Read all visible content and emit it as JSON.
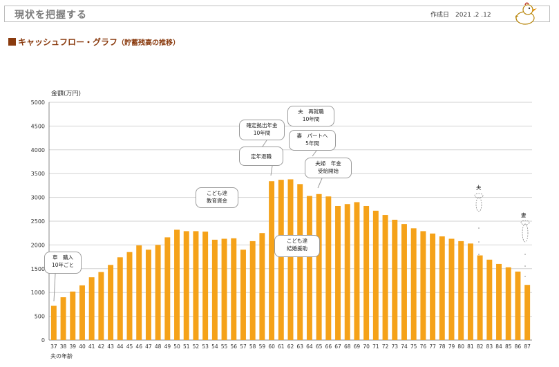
{
  "header": {
    "title": "現状を把握する",
    "date_label": "作成日",
    "date": "2021 .2 .12"
  },
  "section": {
    "title": "キャッシュフロー・グラフ",
    "subtitle": "（貯蓄残高の推移）"
  },
  "colors": {
    "bar": "#F5A219",
    "grid": "#d2d2d2",
    "accent": "#8a3b0f"
  },
  "chart_data": {
    "type": "bar",
    "ylabel": "金額(万円)",
    "xlabel": "夫の年齢",
    "ylim": [
      0,
      5000
    ],
    "yticks": [
      0,
      500,
      1000,
      1500,
      2000,
      2500,
      3000,
      3500,
      4000,
      4500,
      5000
    ],
    "grid": true,
    "categories": [
      "37",
      "38",
      "39",
      "40",
      "41",
      "42",
      "43",
      "44",
      "45",
      "46",
      "47",
      "48",
      "49",
      "50",
      "51",
      "52",
      "53",
      "54",
      "55",
      "56",
      "57",
      "58",
      "59",
      "60",
      "61",
      "62",
      "63",
      "64",
      "65",
      "66",
      "67",
      "68",
      "69",
      "70",
      "71",
      "72",
      "73",
      "74",
      "75",
      "76",
      "77",
      "78",
      "79",
      "80",
      "81",
      "82",
      "83",
      "84",
      "85",
      "86",
      "87"
    ],
    "values": [
      720,
      900,
      1020,
      1150,
      1320,
      1430,
      1580,
      1740,
      1850,
      1990,
      1900,
      2000,
      2160,
      2320,
      2290,
      2290,
      2280,
      2110,
      2130,
      2140,
      1900,
      2080,
      2250,
      3340,
      3370,
      3380,
      3280,
      3030,
      3070,
      3020,
      2820,
      2860,
      2900,
      2820,
      2720,
      2630,
      2530,
      2440,
      2350,
      2290,
      2240,
      2180,
      2130,
      2080,
      2030,
      1780,
      1690,
      1600,
      1530,
      1440,
      1160
    ]
  },
  "annotations": [
    {
      "id": "car",
      "lines": [
        "車　購入",
        "10年ごと"
      ]
    },
    {
      "id": "edu",
      "lines": [
        "こども達",
        "教育資金"
      ]
    },
    {
      "id": "pension",
      "lines": [
        "確定拠出年金",
        "10年間"
      ]
    },
    {
      "id": "retire",
      "lines": [
        "定年退職"
      ]
    },
    {
      "id": "rehire",
      "lines": [
        "夫　再就職",
        "10年間"
      ]
    },
    {
      "id": "parttime",
      "lines": [
        "妻　パートへ",
        "5年間"
      ]
    },
    {
      "id": "public",
      "lines": [
        "夫婦　年金",
        "受給開始"
      ]
    },
    {
      "id": "wedding",
      "lines": [
        "こども達",
        "結婚援助"
      ]
    }
  ],
  "markers": {
    "husband": "夫",
    "wife": "妻"
  }
}
